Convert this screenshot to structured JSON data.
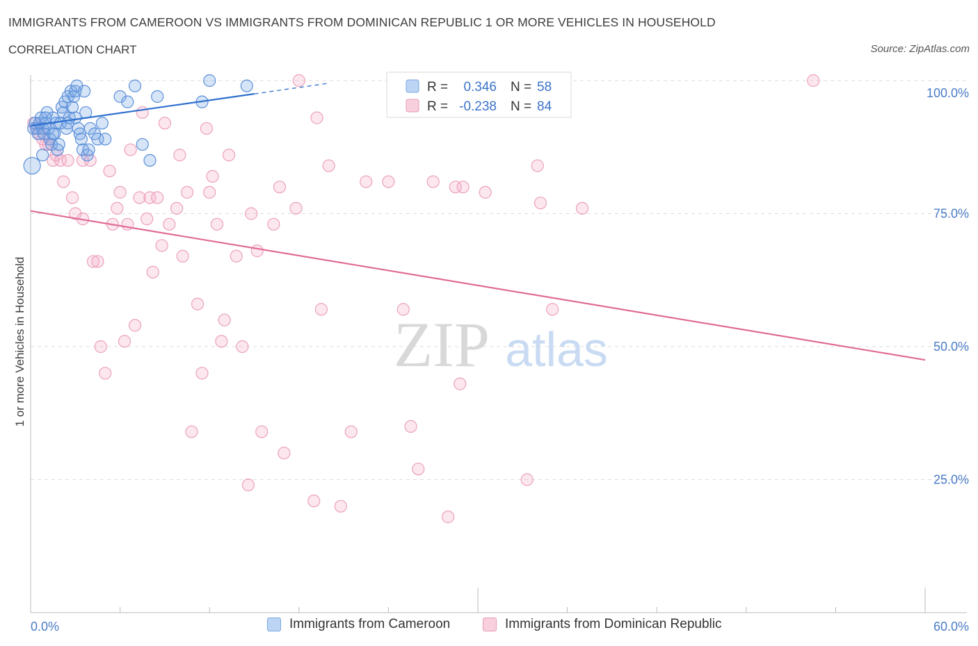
{
  "header": {
    "title": "IMMIGRANTS FROM CAMEROON VS IMMIGRANTS FROM DOMINICAN REPUBLIC 1 OR MORE VEHICLES IN HOUSEHOLD",
    "subtitle": "CORRELATION CHART",
    "source": "Source: ZipAtlas.com"
  },
  "watermark": {
    "zip": "ZIP",
    "atlas": "atlas"
  },
  "legend_top": {
    "r_label": "R =",
    "n_label": "N =",
    "series": [
      {
        "r": "0.346",
        "n": "58"
      },
      {
        "r": "-0.238",
        "n": "84"
      }
    ]
  },
  "chart_data": {
    "type": "scatter",
    "title": "IMMIGRANTS FROM CAMEROON VS IMMIGRANTS FROM DOMINICAN REPUBLIC 1 OR MORE VEHICLES IN HOUSEHOLD",
    "xlabel": "",
    "ylabel": "1 or more Vehicles in Household",
    "xlim": [
      0,
      60
    ],
    "ylim": [
      0,
      100
    ],
    "x_tick_labels": [
      "0.0%",
      "60.0%"
    ],
    "y_tick_labels": [
      "100.0%",
      "75.0%",
      "50.0%",
      "25.0%"
    ],
    "y_ticks": [
      100,
      75,
      50,
      25
    ],
    "legend_position": "bottom",
    "grid": true,
    "colors": {
      "cameroon": "#4a86d8",
      "dominican": "#e57a9f"
    },
    "series": [
      {
        "name": "Immigrants from Cameroon",
        "r": 0.346,
        "n": 58,
        "trend": {
          "x0": 0,
          "y0": 91.5,
          "x1": 15,
          "y1": 97.5,
          "dash_to_x": 20,
          "dash_to_y": 99.5
        },
        "points": [
          [
            0.1,
            84
          ],
          [
            0.2,
            91
          ],
          [
            0.3,
            92
          ],
          [
            0.4,
            91
          ],
          [
            0.5,
            90
          ],
          [
            0.6,
            92
          ],
          [
            0.7,
            93
          ],
          [
            0.8,
            91
          ],
          [
            0.9,
            90
          ],
          [
            1.0,
            92
          ],
          [
            1.1,
            94
          ],
          [
            1.2,
            91
          ],
          [
            1.3,
            89
          ],
          [
            1.4,
            88
          ],
          [
            1.5,
            93
          ],
          [
            1.6,
            90
          ],
          [
            1.7,
            92
          ],
          [
            1.8,
            87
          ],
          [
            1.9,
            88
          ],
          [
            2.0,
            92
          ],
          [
            2.1,
            95
          ],
          [
            2.2,
            94
          ],
          [
            2.3,
            96
          ],
          [
            2.4,
            91
          ],
          [
            2.5,
            97
          ],
          [
            2.6,
            93
          ],
          [
            2.7,
            98
          ],
          [
            2.8,
            95
          ],
          [
            2.9,
            97
          ],
          [
            3.0,
            98
          ],
          [
            3.1,
            99
          ],
          [
            3.2,
            91
          ],
          [
            3.3,
            90
          ],
          [
            3.4,
            89
          ],
          [
            3.5,
            87
          ],
          [
            3.6,
            98
          ],
          [
            3.7,
            94
          ],
          [
            3.8,
            86
          ],
          [
            3.9,
            87
          ],
          [
            4.0,
            91
          ],
          [
            4.3,
            90
          ],
          [
            4.5,
            89
          ],
          [
            4.8,
            92
          ],
          [
            5.0,
            89
          ],
          [
            6.0,
            97
          ],
          [
            6.5,
            96
          ],
          [
            7.0,
            99
          ],
          [
            7.5,
            88
          ],
          [
            8.0,
            85
          ],
          [
            8.5,
            97
          ],
          [
            11.5,
            96
          ],
          [
            12.0,
            100
          ],
          [
            14.5,
            99
          ],
          [
            0.8,
            86
          ],
          [
            1.0,
            93
          ],
          [
            1.5,
            90
          ],
          [
            2.5,
            92
          ],
          [
            3.0,
            93
          ]
        ]
      },
      {
        "name": "Immigrants from Dominican Republic",
        "r": -0.238,
        "n": 84,
        "trend": {
          "x0": 0,
          "y0": 75.5,
          "x1": 60,
          "y1": 47.5
        },
        "points": [
          [
            0.2,
            92
          ],
          [
            0.4,
            91
          ],
          [
            0.6,
            90
          ],
          [
            0.8,
            89
          ],
          [
            1.0,
            88
          ],
          [
            1.2,
            88
          ],
          [
            1.5,
            85
          ],
          [
            1.7,
            86
          ],
          [
            2.0,
            85
          ],
          [
            2.2,
            81
          ],
          [
            2.5,
            85
          ],
          [
            2.8,
            78
          ],
          [
            3.0,
            75
          ],
          [
            3.5,
            74
          ],
          [
            3.5,
            85
          ],
          [
            4.0,
            85
          ],
          [
            4.2,
            66
          ],
          [
            4.5,
            66
          ],
          [
            4.7,
            50
          ],
          [
            5.0,
            45
          ],
          [
            5.3,
            83
          ],
          [
            5.5,
            73
          ],
          [
            5.8,
            76
          ],
          [
            6.0,
            79
          ],
          [
            6.3,
            51
          ],
          [
            6.5,
            73
          ],
          [
            6.7,
            87
          ],
          [
            7.0,
            54
          ],
          [
            7.3,
            78
          ],
          [
            7.5,
            94
          ],
          [
            7.8,
            74
          ],
          [
            8.0,
            78
          ],
          [
            8.2,
            64
          ],
          [
            8.5,
            78
          ],
          [
            8.8,
            69
          ],
          [
            9.0,
            92
          ],
          [
            9.3,
            73
          ],
          [
            9.8,
            76
          ],
          [
            10.0,
            86
          ],
          [
            10.2,
            67
          ],
          [
            10.5,
            79
          ],
          [
            10.8,
            34
          ],
          [
            11.2,
            58
          ],
          [
            11.5,
            45
          ],
          [
            11.8,
            91
          ],
          [
            12.0,
            79
          ],
          [
            12.2,
            82
          ],
          [
            12.5,
            73
          ],
          [
            12.8,
            51
          ],
          [
            13.0,
            55
          ],
          [
            13.3,
            86
          ],
          [
            13.8,
            67
          ],
          [
            14.2,
            50
          ],
          [
            14.6,
            24
          ],
          [
            14.8,
            75
          ],
          [
            15.2,
            68
          ],
          [
            15.5,
            34
          ],
          [
            16.3,
            73
          ],
          [
            16.7,
            80
          ],
          [
            17.0,
            30
          ],
          [
            17.8,
            76
          ],
          [
            18.0,
            100
          ],
          [
            19.0,
            21
          ],
          [
            19.2,
            93
          ],
          [
            19.5,
            57
          ],
          [
            20.0,
            84
          ],
          [
            20.8,
            20
          ],
          [
            21.5,
            34
          ],
          [
            22.5,
            81
          ],
          [
            24.0,
            81
          ],
          [
            25.0,
            57
          ],
          [
            25.5,
            35
          ],
          [
            26.0,
            27
          ],
          [
            27.0,
            81
          ],
          [
            28.0,
            18
          ],
          [
            28.5,
            80
          ],
          [
            28.8,
            43
          ],
          [
            29.0,
            80
          ],
          [
            30.5,
            79
          ],
          [
            33.3,
            25
          ],
          [
            34.0,
            84
          ],
          [
            34.2,
            77
          ],
          [
            35.0,
            57
          ],
          [
            37.0,
            76
          ]
        ],
        "extra_points": [
          [
            52.5,
            100
          ]
        ]
      }
    ]
  },
  "bottom_legend": {
    "items": [
      {
        "label": "Immigrants from Cameroon",
        "color": "#a9c8f0"
      },
      {
        "label": "Immigrants from Dominican Republic",
        "color": "#f5c0d2"
      }
    ]
  }
}
